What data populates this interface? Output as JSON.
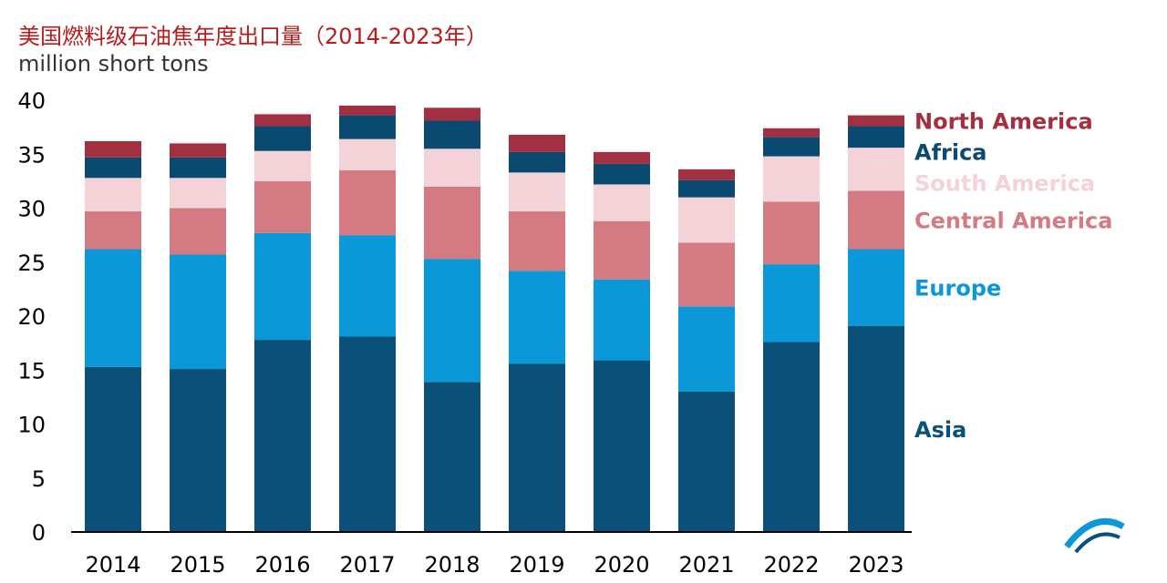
{
  "title": "美国燃料级石油焦年度出口量（2014-2023年）",
  "unit": "million short tons",
  "chart_data": {
    "type": "bar",
    "stacked": true,
    "categories": [
      "2014",
      "2015",
      "2016",
      "2017",
      "2018",
      "2019",
      "2020",
      "2021",
      "2022",
      "2023"
    ],
    "ylim": [
      0,
      40
    ],
    "yticks": [
      0,
      5,
      10,
      15,
      20,
      25,
      30,
      35,
      40
    ],
    "grid": false,
    "legend": "right",
    "series": [
      {
        "name": "Asia",
        "color": "#0a5078",
        "values": [
          15.3,
          15.1,
          17.8,
          18.1,
          13.9,
          15.6,
          15.9,
          13.0,
          17.6,
          19.1
        ]
      },
      {
        "name": "Europe",
        "color": "#0b98d8",
        "values": [
          10.9,
          10.6,
          9.9,
          9.4,
          11.4,
          8.6,
          7.5,
          7.9,
          7.2,
          7.1
        ]
      },
      {
        "name": "Central America",
        "color": "#d47a82",
        "values": [
          3.5,
          4.3,
          4.8,
          6.0,
          6.7,
          5.5,
          5.4,
          5.9,
          5.8,
          5.4
        ]
      },
      {
        "name": "South America",
        "color": "#f3d3d8",
        "values": [
          3.1,
          2.8,
          2.8,
          2.9,
          3.5,
          3.6,
          3.4,
          4.2,
          4.2,
          4.0
        ]
      },
      {
        "name": "Africa",
        "color": "#0b4a70",
        "values": [
          1.9,
          1.9,
          2.3,
          2.2,
          2.6,
          1.9,
          1.9,
          1.6,
          1.8,
          2.0
        ]
      },
      {
        "name": "North America",
        "color": "#a33040",
        "values": [
          1.5,
          1.3,
          1.1,
          0.9,
          1.2,
          1.6,
          1.1,
          1.0,
          0.8,
          1.0
        ]
      }
    ]
  }
}
